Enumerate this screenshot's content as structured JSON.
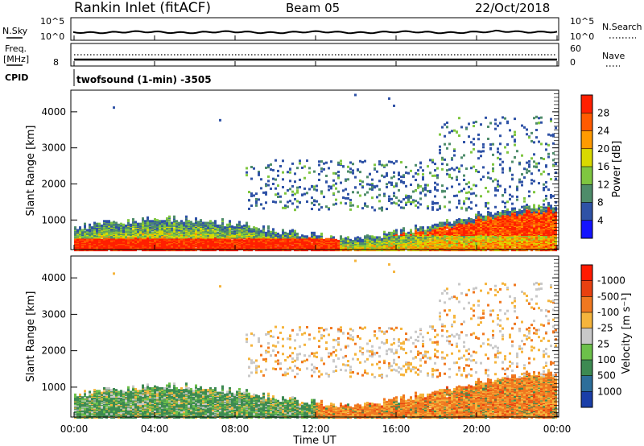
{
  "header": {
    "station": "Rankin Inlet (fitACF)",
    "beam": "Beam 05",
    "date": "22/Oct/2018"
  },
  "noise_panel": {
    "left_label": "N.Sky",
    "right_label": "N.Search",
    "ticks_left": [
      "10^5",
      "10^0"
    ],
    "ticks_right": [
      "10^5",
      "10^0"
    ]
  },
  "freq_panel": {
    "left_label_line1": "Freq.",
    "left_label_line2": "[MHz]",
    "right_label": "Nave",
    "ticks_left": [
      "8"
    ],
    "ticks_right": [
      "60",
      "0"
    ]
  },
  "cpid": {
    "label": "CPID",
    "text": "twofsound (1-min) -3505"
  },
  "chart_data": [
    {
      "type": "heatmap",
      "title": "",
      "ylabel": "Slant Range [km]",
      "ylim": [
        180,
        4600
      ],
      "yticks": [
        "1000",
        "2000",
        "3000",
        "4000"
      ],
      "colorbar_label": "Power [dB]",
      "colorbar_ticks": [
        "4",
        "8",
        "12",
        "16",
        "20",
        "24",
        "28"
      ],
      "colors": [
        "#1414ff",
        "#2f52a6",
        "#4e8c6a",
        "#7fc640",
        "#d9d900",
        "#ff9a00",
        "#ff5a00",
        "#ff1f00"
      ]
    },
    {
      "type": "heatmap",
      "title": "",
      "ylabel": "Slant Range [km]",
      "ylim": [
        180,
        4600
      ],
      "yticks": [
        "1000",
        "2000",
        "3000",
        "4000"
      ],
      "xlabel": "Time UT",
      "xticks": [
        "00:00",
        "04:00",
        "08:00",
        "12:00",
        "16:00",
        "20:00",
        "00:00"
      ],
      "colorbar_label": "Velocity [m s⁻¹]",
      "colorbar_ticks": [
        "1000",
        "500",
        "100",
        "25",
        "-25",
        "-100",
        "-500",
        "-1000"
      ],
      "colors": [
        "#1a3ea8",
        "#2d6e9a",
        "#3d8a52",
        "#6cc04a",
        "#c8c8c8",
        "#f5b43c",
        "#f07820",
        "#e84010",
        "#ff1a00"
      ]
    }
  ]
}
